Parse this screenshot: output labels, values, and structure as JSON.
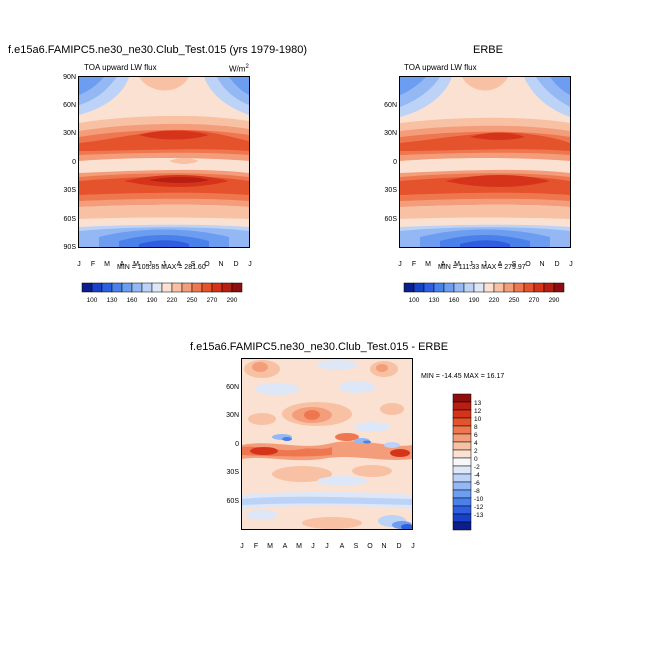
{
  "chart_data": [
    {
      "type": "heatmap",
      "title": "f.e15a6.FAMIPC5.ne30_ne30.Club_Test.015 (yrs 1979-1980)",
      "subtitle": "TOA upward LW flux",
      "units": "W/m",
      "units_sup": "2",
      "minmax": "MIN = 105.85  MAX = 281.60",
      "x_tick_labels": [
        "J",
        "F",
        "M",
        "A",
        "M",
        "J",
        "J",
        "A",
        "S",
        "O",
        "N",
        "D",
        "J"
      ],
      "y_tick_labels": [
        "90N",
        "60N",
        "30N",
        "0",
        "30S",
        "60S",
        "90S"
      ],
      "ylim": [
        -90,
        90
      ],
      "colorbar_labels": [
        "100",
        "130",
        "160",
        "190",
        "220",
        "250",
        "270",
        "290"
      ]
    },
    {
      "type": "heatmap",
      "title": "ERBE",
      "subtitle": "TOA upward LW flux",
      "minmax": "MIN = 111.33  MAX = 279.97",
      "x_tick_labels": [
        "J",
        "F",
        "M",
        "A",
        "M",
        "J",
        "J",
        "A",
        "S",
        "O",
        "N",
        "D",
        "J"
      ],
      "y_tick_labels": [
        "60N",
        "30N",
        "0",
        "30S",
        "60S"
      ],
      "ylim": [
        -90,
        90
      ],
      "colorbar_labels": [
        "100",
        "130",
        "160",
        "190",
        "220",
        "250",
        "270",
        "290"
      ]
    },
    {
      "type": "heatmap",
      "title": "f.e15a6.FAMIPC5.ne30_ne30.Club_Test.015 - ERBE",
      "minmax": "MIN = -14.45  MAX =  16.17",
      "x_tick_labels": [
        "J",
        "F",
        "M",
        "A",
        "M",
        "J",
        "J",
        "A",
        "S",
        "O",
        "N",
        "D",
        "J"
      ],
      "y_tick_labels": [
        "60N",
        "30N",
        "0",
        "30S",
        "60S"
      ],
      "ylim": [
        -90,
        90
      ],
      "colorbar_labels": [
        "13",
        "12",
        "10",
        "8",
        "6",
        "4",
        "2",
        "0",
        "-2",
        "-4",
        "-6",
        "-8",
        "-10",
        "-12",
        "-13"
      ]
    }
  ],
  "colors": {
    "flux_scale": [
      "#0b1e8c",
      "#1840c8",
      "#2e5fe0",
      "#4a80ea",
      "#6c9df0",
      "#93b8f3",
      "#bcd3f7",
      "#dde7f7",
      "#fbe1d1",
      "#f8c1a4",
      "#f49d7a",
      "#ef7750",
      "#e5532d",
      "#d5341b",
      "#b81e12",
      "#8e0d0d"
    ],
    "diff_scale": [
      "#8e0d0d",
      "#b81e12",
      "#d5341b",
      "#e5532d",
      "#ef7750",
      "#f49d7a",
      "#f8c1a4",
      "#fbe1d1",
      "#f7f7f7",
      "#dde7f7",
      "#bcd3f7",
      "#93b8f3",
      "#6c9df0",
      "#4a80ea",
      "#2e5fe0",
      "#1840c8",
      "#0b1e8c"
    ]
  }
}
